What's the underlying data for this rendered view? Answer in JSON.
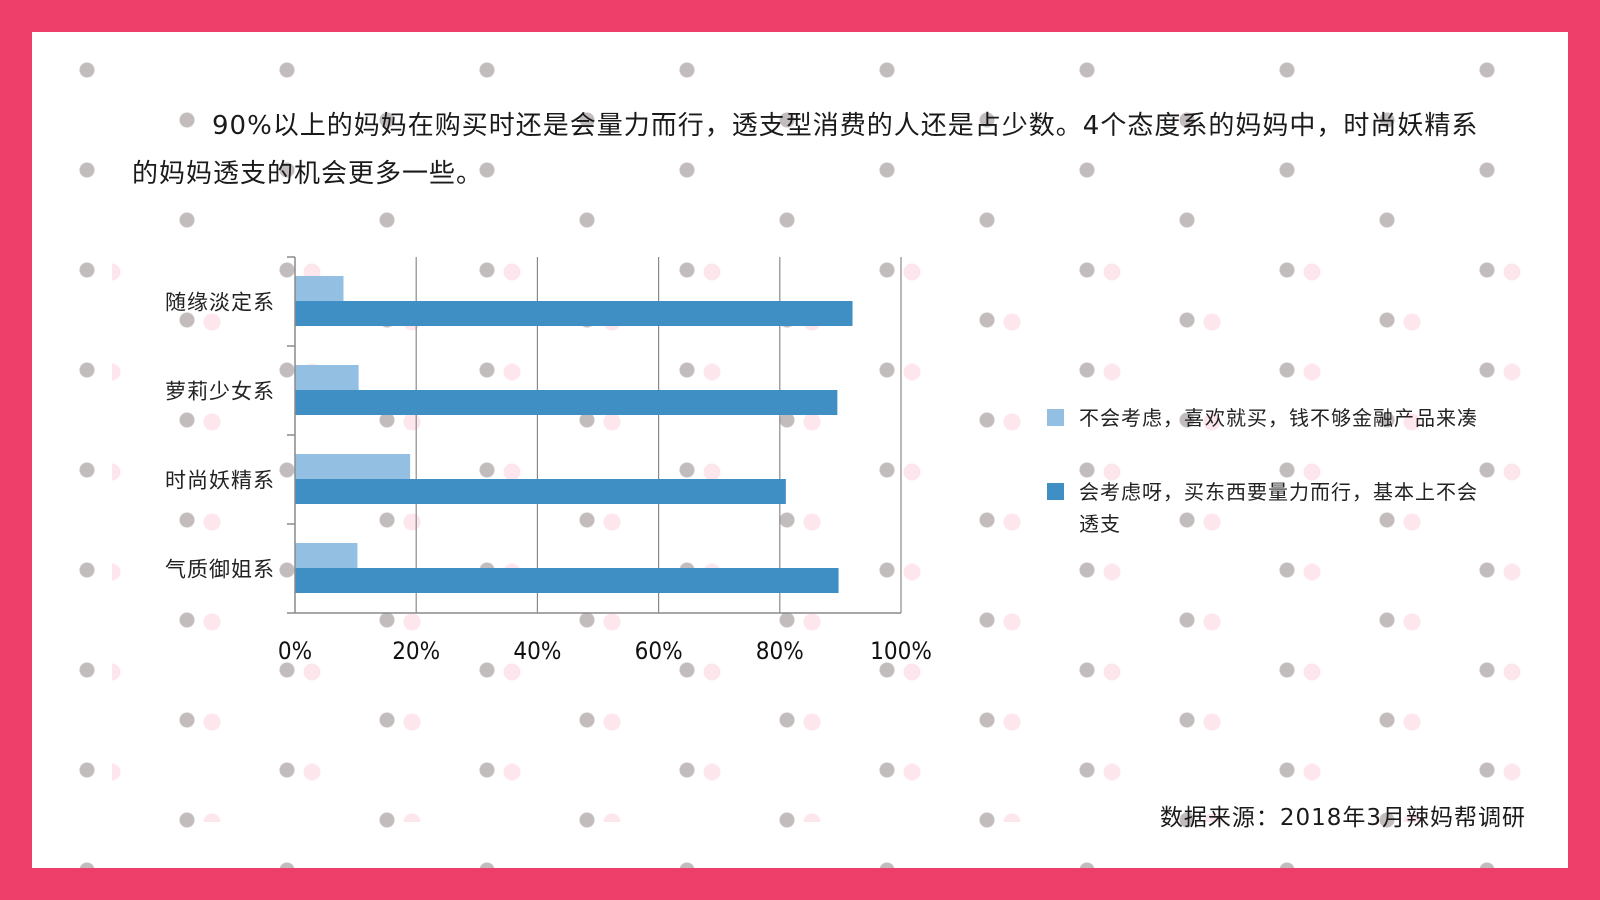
{
  "summary": "90%以上的妈妈在购买时还是会量力而行，透支型消费的人还是占少数。4个态度系的妈妈中，时尚妖精系的妈妈透支的机会更多一些。",
  "source": "数据来源：2018年3月辣妈帮调研",
  "chart_data": {
    "type": "bar",
    "orientation": "horizontal",
    "categories": [
      "随缘淡定系",
      "萝莉少女系",
      "时尚妖精系",
      "气质御姐系"
    ],
    "series": [
      {
        "name": "不会考虑，喜欢就买，钱不够金融产品来凑",
        "values": [
          8,
          10.5,
          19,
          10.3
        ],
        "color": "#93bfe3"
      },
      {
        "name": "会考虑呀，买东西要量力而行，基本上不会透支",
        "values": [
          92,
          89.5,
          81,
          89.7
        ],
        "color": "#3f8fc4"
      }
    ],
    "x_ticks": [
      "0%",
      "20%",
      "40%",
      "60%",
      "80%",
      "100%"
    ],
    "xlim": [
      0,
      100
    ],
    "unit": "%",
    "grid": true,
    "legend": "right"
  }
}
